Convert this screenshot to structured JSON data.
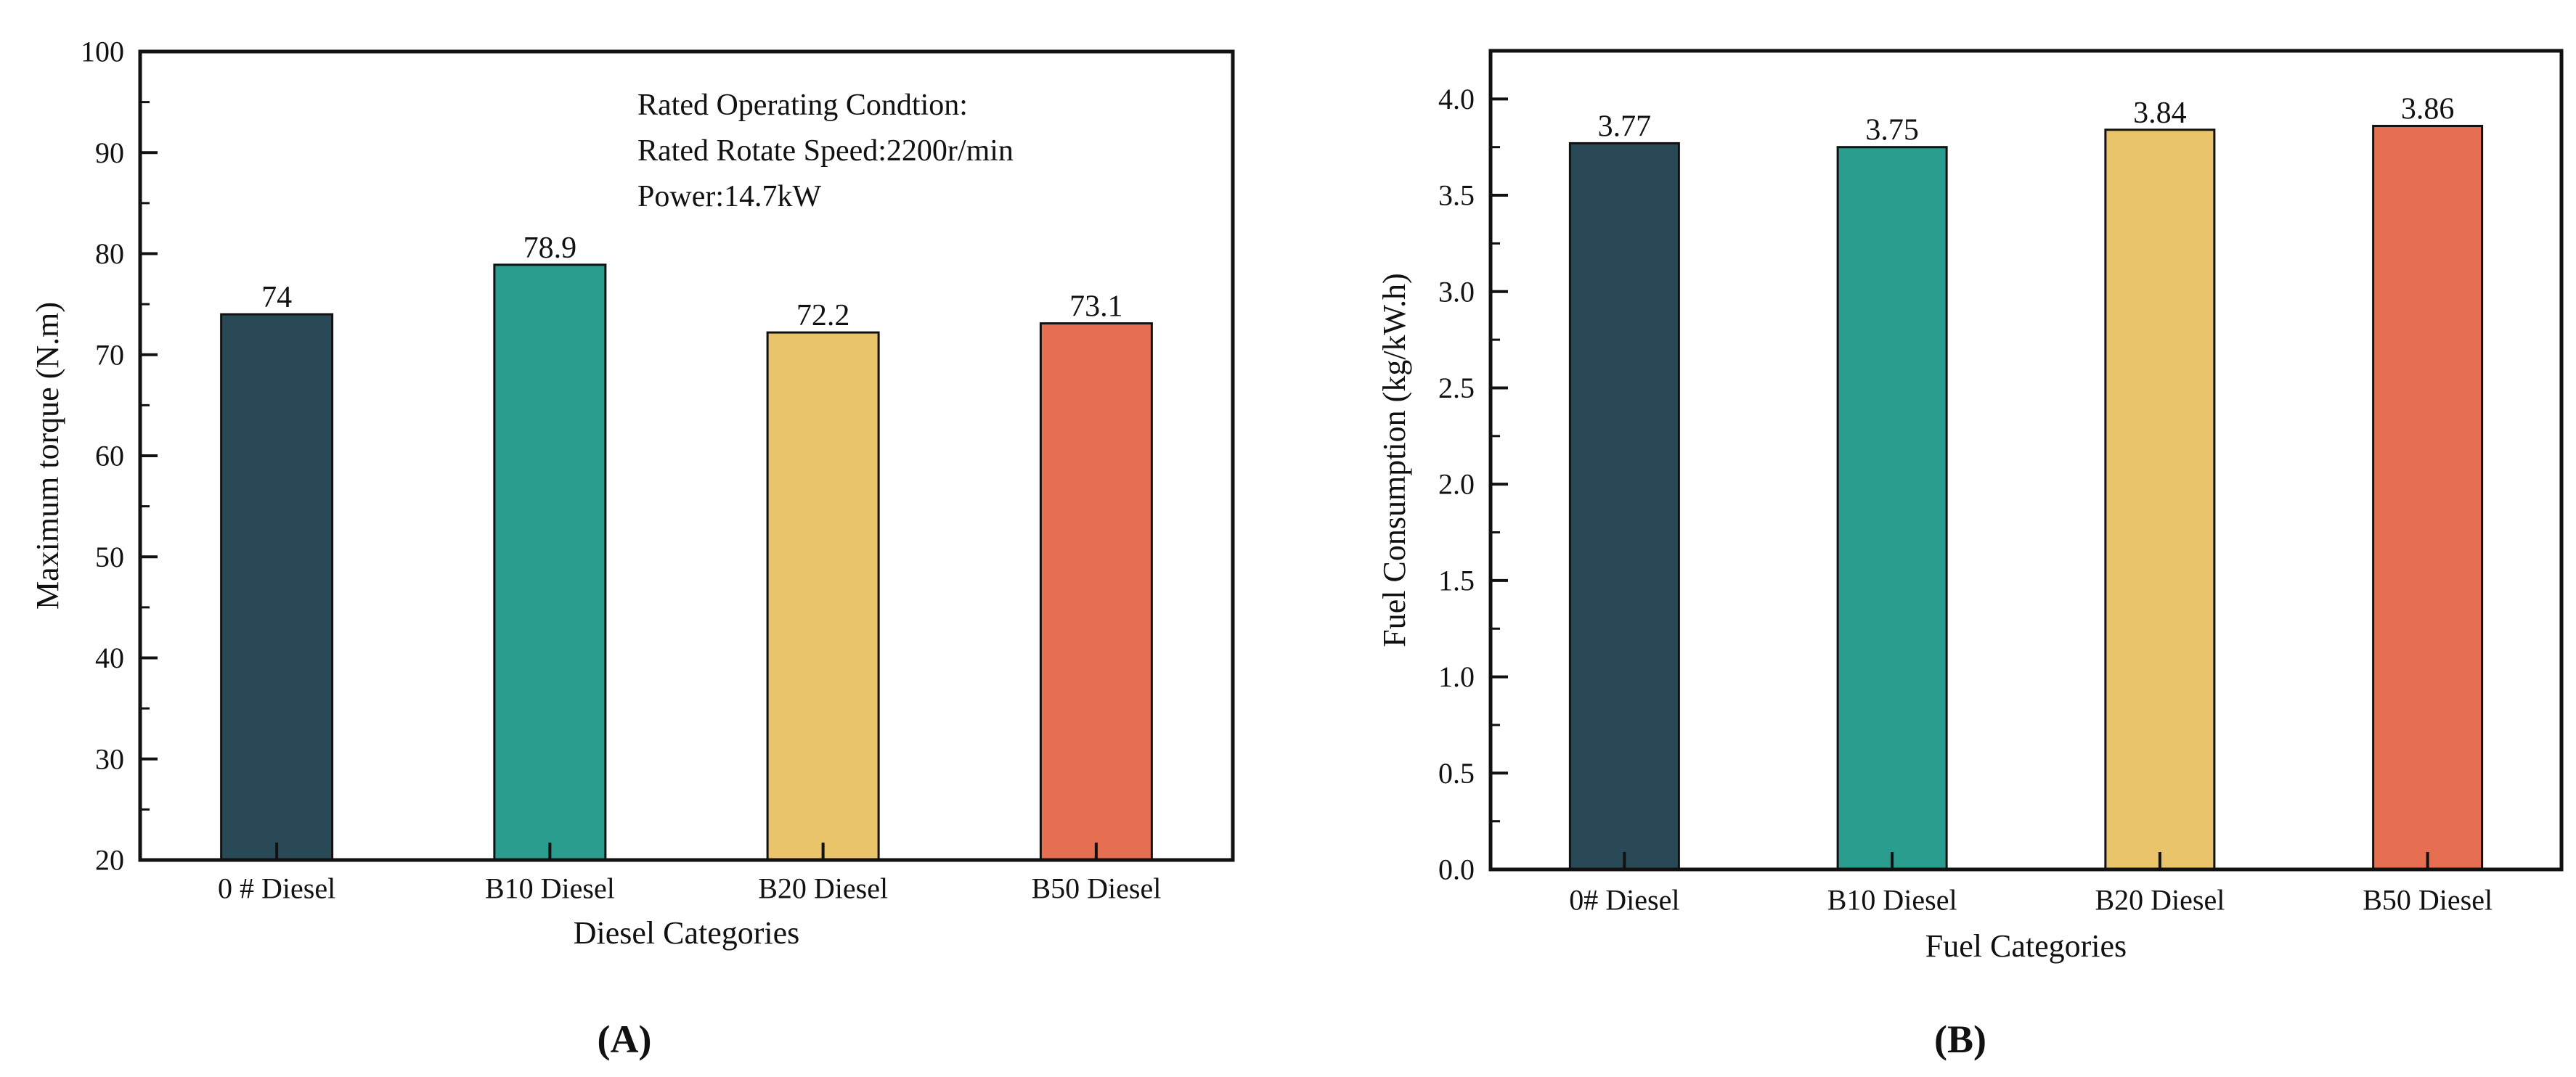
{
  "chart_data": [
    {
      "type": "bar",
      "panel_label": "(A)",
      "title": "",
      "xlabel": "Diesel Categories",
      "ylabel": "Maximum torque (N.m)",
      "categories": [
        "0 # Diesel",
        "B10 Diesel",
        "B20 Diesel",
        "B50 Diesel"
      ],
      "values": [
        74,
        78.9,
        72.2,
        73.1
      ],
      "value_labels": [
        "74",
        "78.9",
        "72.2",
        "73.1"
      ],
      "ylim": [
        20,
        100
      ],
      "ytick_labels": [
        "20",
        "30",
        "40",
        "50",
        "60",
        "70",
        "80",
        "90",
        "100"
      ],
      "yminor_step": 5,
      "grid": false,
      "legend": "none",
      "bar_colors": [
        "#2a4956",
        "#2a9d8f",
        "#e9c46a",
        "#e76f51"
      ],
      "bar_edge_color": "#111111",
      "annotation": [
        "Rated Operating Condtion:",
        "Rated Rotate Speed:2200r/min",
        "Power:14.7kW"
      ]
    },
    {
      "type": "bar",
      "panel_label": "(B)",
      "title": "",
      "xlabel": "Fuel Categories",
      "ylabel": "Fuel Consumption (kg/kW.h)",
      "categories": [
        "0# Diesel",
        "B10 Diesel",
        "B20 Diesel",
        "B50 Diesel"
      ],
      "values": [
        3.77,
        3.75,
        3.84,
        3.86
      ],
      "value_labels": [
        "3.77",
        "3.75",
        "3.84",
        "3.86"
      ],
      "ylim": [
        0,
        4.25
      ],
      "ytick_labels": [
        "0.0",
        "0.5",
        "1.0",
        "1.5",
        "2.0",
        "2.5",
        "3.0",
        "3.5",
        "4.0"
      ],
      "yminor_step": 0.25,
      "grid": false,
      "legend": "none",
      "bar_colors": [
        "#2a4956",
        "#2a9d8f",
        "#e9c46a",
        "#e76f51"
      ],
      "bar_edge_color": "#111111",
      "annotation": []
    }
  ]
}
